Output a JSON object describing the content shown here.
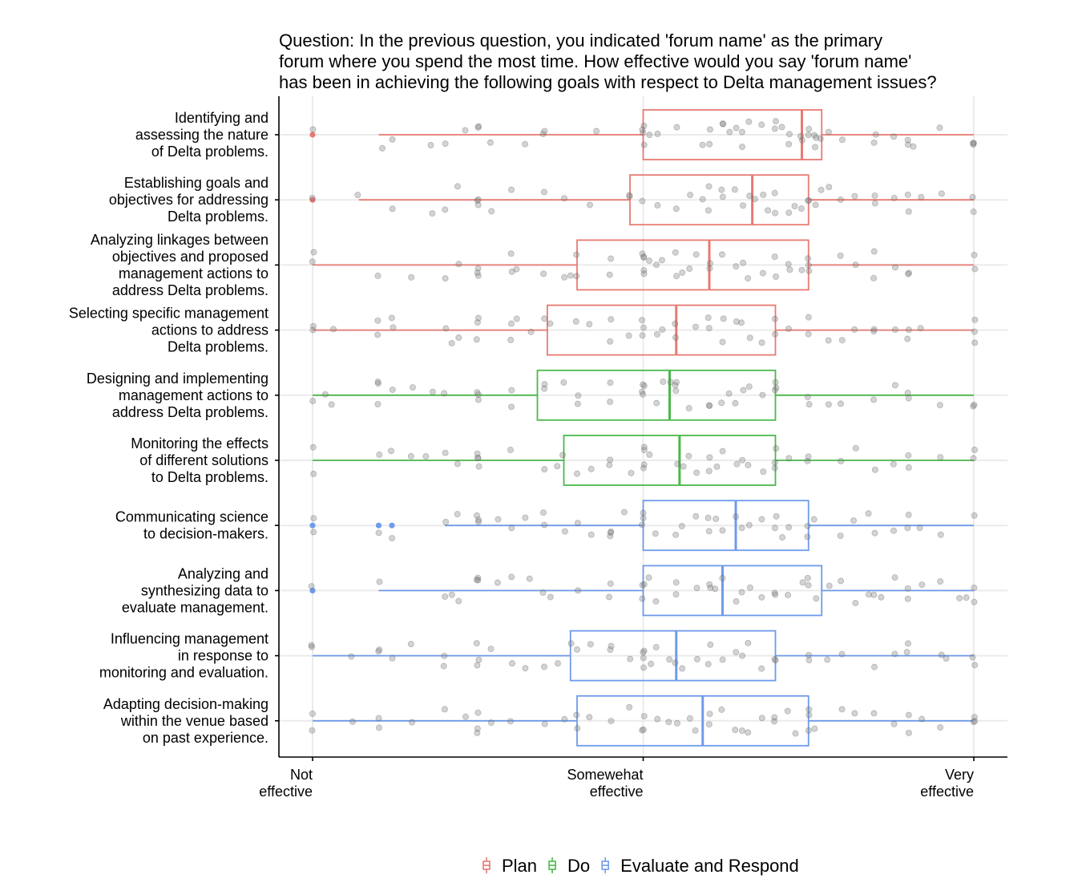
{
  "colors": {
    "Plan": "#E87A72",
    "Do": "#4CB84C",
    "Evaluate and Respond": "#6F9BEB",
    "point": "#808080"
  },
  "chart_data": {
    "type": "box-jitter",
    "title": "Question: In the previous question, you indicated 'forum name' as the primary\nforum where you spend the most time. How effective would you say 'forum name'\nhas been in achieving the following goals with respect to Delta management issues?",
    "x_ticks": [
      {
        "value": 0,
        "label": "Not\neffective"
      },
      {
        "value": 50,
        "label": "Somewehat\neffective"
      },
      {
        "value": 100,
        "label": "Very\neffective"
      }
    ],
    "xlim": [
      -5,
      105
    ],
    "grid": true,
    "legend": {
      "position": "bottom",
      "entries": [
        "Plan",
        "Do",
        "Evaluate and Respond"
      ]
    },
    "categories": [
      {
        "label": "Identifying and\nassessing the nature\nof Delta problems.",
        "group": "Plan",
        "box": {
          "whisker_low": 10,
          "q1": 50,
          "median": 74,
          "q3": 77,
          "whisker_high": 100
        },
        "outliers": [
          0
        ],
        "points": [
          0,
          10.5,
          12,
          18,
          20,
          23,
          25,
          25,
          27,
          32,
          35,
          35,
          43,
          50,
          50,
          50,
          50,
          51,
          52,
          55,
          59,
          60,
          60,
          62,
          62,
          63,
          64,
          65,
          65,
          66,
          68,
          70,
          70,
          71,
          72,
          72,
          74,
          74,
          75,
          75,
          76,
          76,
          76,
          77,
          78,
          80,
          85,
          85,
          88,
          90,
          90,
          91,
          95,
          100,
          100,
          100
        ]
      },
      {
        "label": "Establishing goals and\nobjectives for addressing\nDelta problems.",
        "group": "Plan",
        "box": {
          "whisker_low": 7,
          "q1": 48,
          "median": 66.5,
          "q3": 75,
          "whisker_high": 100
        },
        "outliers": [
          0
        ],
        "points": [
          0,
          7,
          12,
          18,
          20,
          22,
          25,
          25,
          25,
          27,
          30,
          35,
          38,
          42,
          48,
          48,
          50,
          52,
          55,
          57,
          59,
          60,
          60,
          62,
          62,
          64,
          65,
          66,
          67,
          68,
          69,
          70,
          70,
          72,
          73,
          74,
          75,
          75,
          76,
          77,
          78,
          80,
          82,
          85,
          85,
          88,
          90,
          90,
          92,
          95,
          100,
          100
        ]
      },
      {
        "label": "Analyzing linkages between\nobjectives and proposed\nmanagement actions to\naddress Delta problems.",
        "group": "Plan",
        "box": {
          "whisker_low": 0,
          "q1": 40,
          "median": 60,
          "q3": 75,
          "whisker_high": 100
        },
        "outliers": [],
        "points": [
          0,
          0,
          10,
          15,
          20,
          22,
          25,
          25,
          25,
          30,
          30,
          31,
          35,
          38,
          39,
          40,
          40,
          45,
          45,
          50,
          50,
          50,
          50,
          50,
          51,
          52,
          53,
          55,
          55,
          56,
          57,
          58,
          60,
          60,
          62,
          64,
          65,
          66,
          68,
          70,
          70,
          72,
          72,
          74,
          75,
          75,
          75,
          80,
          82,
          85,
          85,
          88,
          90,
          90,
          100,
          100
        ]
      },
      {
        "label": "Selecting specific management\nactions to address\nDelta problems.",
        "group": "Plan",
        "box": {
          "whisker_low": 0,
          "q1": 35.5,
          "median": 55,
          "q3": 70,
          "whisker_high": 100
        },
        "outliers": [],
        "points": [
          0,
          0,
          3,
          10,
          10,
          12,
          12,
          20,
          21,
          22,
          25,
          25,
          25,
          30,
          30,
          31,
          33,
          35,
          36,
          40,
          42,
          45,
          45,
          48,
          50,
          50,
          50,
          52,
          53,
          55,
          55,
          58,
          60,
          60,
          62,
          62,
          64,
          65,
          66,
          68,
          70,
          70,
          72,
          75,
          75,
          78,
          80,
          82,
          85,
          85,
          88,
          90,
          90,
          92,
          100,
          100,
          100
        ]
      },
      {
        "label": "Designing and implementing\nmanagement actions to\naddress Delta problems.",
        "group": "Do",
        "box": {
          "whisker_low": 0,
          "q1": 34,
          "median": 54,
          "q3": 70,
          "whisker_high": 100
        },
        "outliers": [],
        "points": [
          0,
          2,
          3,
          10,
          10,
          10,
          12,
          15,
          18,
          20,
          25,
          25,
          25,
          30,
          30,
          35,
          35,
          38,
          40,
          40,
          45,
          45,
          50,
          50,
          50,
          50,
          52,
          53,
          54,
          55,
          55,
          55,
          57,
          60,
          60,
          62,
          63,
          64,
          65,
          66,
          68,
          70,
          70,
          70,
          75,
          75,
          78,
          80,
          85,
          88,
          90,
          90,
          95,
          100,
          100
        ]
      },
      {
        "label": "Monitoring the effects\nof different solutions\nto Delta problems.",
        "group": "Do",
        "box": {
          "whisker_low": 0,
          "q1": 38,
          "median": 55.5,
          "q3": 70,
          "whisker_high": 100
        },
        "outliers": [],
        "points": [
          0,
          0,
          10,
          12,
          15,
          17,
          20,
          22,
          25,
          25,
          25,
          25,
          30,
          35,
          37,
          38,
          40,
          42,
          45,
          45,
          48,
          50,
          50,
          50,
          50,
          51,
          55,
          56,
          57,
          58,
          60,
          60,
          61,
          62,
          64,
          65,
          66,
          68,
          70,
          70,
          70,
          72,
          75,
          75,
          80,
          82,
          85,
          88,
          90,
          90,
          95,
          100,
          100
        ]
      },
      {
        "label": "Communicating science\nto decision-makers.",
        "group": "Evaluate and Respond",
        "box": {
          "whisker_low": 20,
          "q1": 50,
          "median": 64,
          "q3": 75,
          "whisker_high": 100
        },
        "outliers": [
          0,
          10,
          12
        ],
        "points": [
          0,
          0,
          10,
          12,
          20,
          22,
          25,
          25,
          25,
          28,
          30,
          32,
          35,
          35,
          38,
          40,
          42,
          45,
          45,
          45,
          47,
          50,
          50,
          50,
          52,
          55,
          56,
          58,
          60,
          60,
          61,
          62,
          64,
          65,
          66,
          68,
          70,
          70,
          71,
          72,
          75,
          75,
          76,
          80,
          82,
          84,
          85,
          88,
          90,
          90,
          92,
          95,
          100
        ]
      },
      {
        "label": "Analyzing and\nsynthesizing data to\nevaluate management.",
        "group": "Evaluate and Respond",
        "box": {
          "whisker_low": 10,
          "q1": 50,
          "median": 62,
          "q3": 77,
          "whisker_high": 100
        },
        "outliers": [
          0
        ],
        "points": [
          0,
          10,
          20,
          21,
          22,
          25,
          25,
          25,
          28,
          30,
          33,
          35,
          36,
          40,
          45,
          45,
          50,
          50,
          50,
          51,
          52,
          55,
          55,
          58,
          60,
          60,
          61,
          62,
          64,
          65,
          66,
          68,
          70,
          70,
          72,
          74,
          75,
          75,
          76,
          78,
          80,
          82,
          84,
          85,
          86,
          88,
          90,
          90,
          92,
          95,
          98,
          99,
          100,
          100
        ]
      },
      {
        "label": "Influencing management\nin response to\nmonitoring and evaluation.",
        "group": "Evaluate and Respond",
        "box": {
          "whisker_low": 0,
          "q1": 39,
          "median": 55,
          "q3": 70,
          "whisker_high": 100
        },
        "outliers": [],
        "points": [
          0,
          0,
          6,
          10,
          10,
          12,
          15,
          20,
          20,
          25,
          25,
          25,
          27,
          30,
          32,
          35,
          37,
          39,
          40,
          42,
          45,
          45,
          48,
          50,
          50,
          50,
          50,
          51,
          52,
          54,
          55,
          56,
          58,
          60,
          60,
          62,
          64,
          65,
          66,
          68,
          70,
          70,
          75,
          75,
          78,
          80,
          85,
          88,
          90,
          90,
          95,
          96,
          100,
          100
        ]
      },
      {
        "label": "Adapting decision-making\nwithin the venue based\non past experience.",
        "group": "Evaluate and Respond",
        "box": {
          "whisker_low": 0,
          "q1": 40,
          "median": 59,
          "q3": 75,
          "whisker_high": 100
        },
        "outliers": [],
        "points": [
          0,
          0,
          6,
          10,
          10,
          15,
          20,
          23,
          25,
          25,
          25,
          27,
          30,
          35,
          38,
          40,
          40,
          42,
          45,
          48,
          50,
          50,
          50,
          52,
          54,
          55,
          57,
          58,
          60,
          60,
          62,
          64,
          65,
          66,
          68,
          70,
          70,
          72,
          73,
          75,
          75,
          75,
          76,
          80,
          82,
          85,
          88,
          90,
          90,
          92,
          95,
          100,
          100,
          100
        ]
      }
    ]
  }
}
